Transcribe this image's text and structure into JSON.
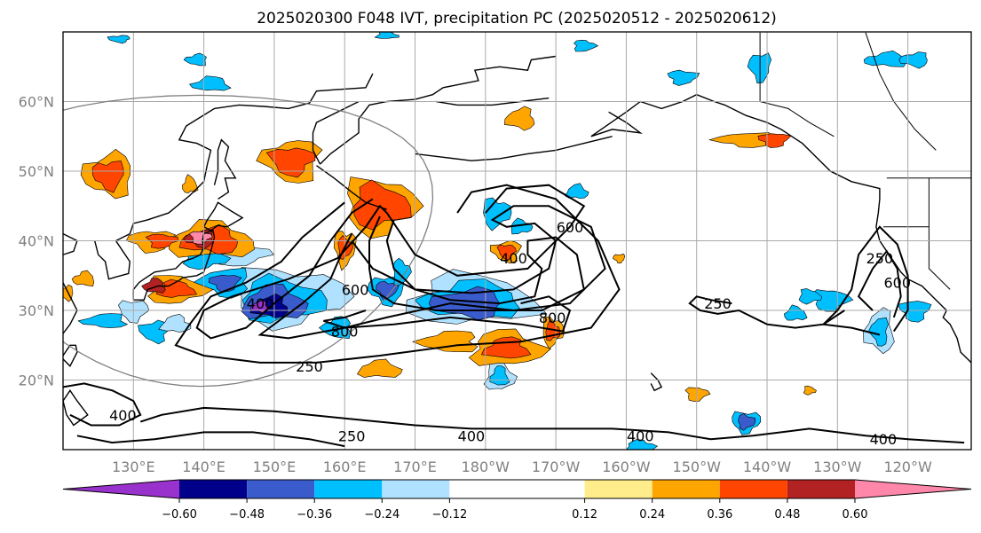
{
  "chart_data": {
    "type": "map-contour",
    "title": "2025020300 F048 IVT, precipitation PC (2025020512 - 2025020612)",
    "region": {
      "lon_min": 120,
      "lon_max": 249,
      "lat_min": 10,
      "lat_max": 70
    },
    "x_ticks": [
      {
        "lon": 130,
        "label": "130°E"
      },
      {
        "lon": 140,
        "label": "140°E"
      },
      {
        "lon": 150,
        "label": "150°E"
      },
      {
        "lon": 160,
        "label": "160°E"
      },
      {
        "lon": 170,
        "label": "170°E"
      },
      {
        "lon": 180,
        "label": "180°W"
      },
      {
        "lon": 190,
        "label": "170°W"
      },
      {
        "lon": 200,
        "label": "160°W"
      },
      {
        "lon": 210,
        "label": "150°W"
      },
      {
        "lon": 220,
        "label": "140°W"
      },
      {
        "lon": 230,
        "label": "130°W"
      },
      {
        "lon": 240,
        "label": "120°W"
      }
    ],
    "y_ticks": [
      {
        "lat": 20,
        "label": "20°N"
      },
      {
        "lat": 30,
        "label": "30°N"
      },
      {
        "lat": 40,
        "label": "40°N"
      },
      {
        "lat": 50,
        "label": "50°N"
      },
      {
        "lat": 60,
        "label": "60°N"
      }
    ],
    "grid": true,
    "colorbar": {
      "orientation": "horizontal",
      "extend": "both",
      "bounds": [
        -0.72,
        -0.6,
        -0.48,
        -0.36,
        -0.24,
        -0.12,
        0.12,
        0.24,
        0.36,
        0.48,
        0.6,
        0.72
      ],
      "colors": [
        "#9932cc",
        "#00008b",
        "#3a5bcc",
        "#00bfff",
        "#b0e2ff",
        "#ffffff",
        "#ffec8b",
        "#ffa500",
        "#ff4500",
        "#b22222",
        "#ff88aa"
      ],
      "tick_values": [
        -0.6,
        -0.48,
        -0.36,
        -0.24,
        -0.12,
        0.12,
        0.24,
        0.36,
        0.48,
        0.6
      ],
      "tick_labels": [
        "−0.60",
        "−0.48",
        "−0.36",
        "−0.24",
        "−0.12",
        "0.12",
        "0.24",
        "0.36",
        "0.48",
        "0.60"
      ]
    },
    "ivt_contour_levels": [
      250,
      400,
      600,
      800
    ],
    "ivt_contour_labels": [
      {
        "text": "400",
        "lon": 148,
        "lat": 31
      },
      {
        "text": "600",
        "lon": 161.5,
        "lat": 33
      },
      {
        "text": "800",
        "lon": 160,
        "lat": 27
      },
      {
        "text": "250",
        "lon": 155,
        "lat": 22
      },
      {
        "text": "400",
        "lon": 184,
        "lat": 37.5
      },
      {
        "text": "600",
        "lon": 192,
        "lat": 42
      },
      {
        "text": "800",
        "lon": 189.5,
        "lat": 29
      },
      {
        "text": "250",
        "lon": 213,
        "lat": 31
      },
      {
        "text": "250",
        "lon": 236,
        "lat": 37.5
      },
      {
        "text": "600",
        "lon": 238.5,
        "lat": 34
      },
      {
        "text": "400",
        "lon": 128.5,
        "lat": 15
      },
      {
        "text": "250",
        "lon": 161,
        "lat": 12
      },
      {
        "text": "400",
        "lon": 178,
        "lat": 12
      },
      {
        "text": "400",
        "lon": 202,
        "lat": 12
      },
      {
        "text": "400",
        "lon": 236.5,
        "lat": 11.5
      }
    ]
  }
}
